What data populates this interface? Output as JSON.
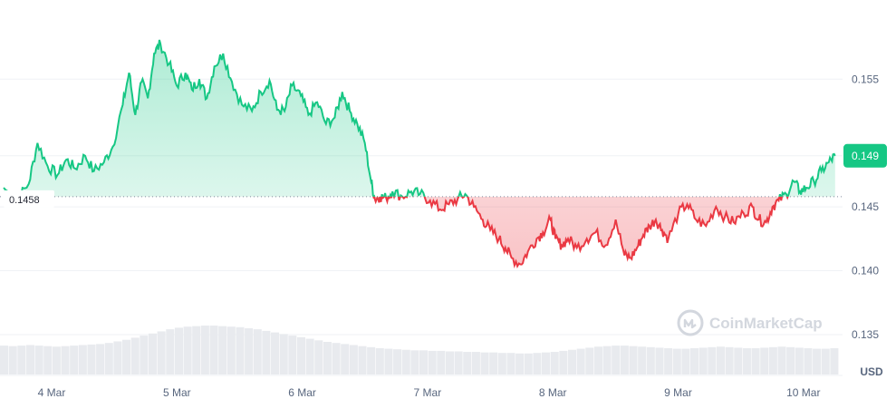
{
  "chart_data": {
    "type": "area",
    "currency": "USD",
    "reference_value": 0.1458,
    "current_value": 0.149,
    "ylim": [
      0.1318,
      0.1612
    ],
    "yticks": [
      {
        "value": 0.155,
        "label": "0.155"
      },
      {
        "value": 0.145,
        "label": "0.145"
      },
      {
        "value": 0.14,
        "label": "0.140"
      },
      {
        "value": 0.135,
        "label": "0.135"
      }
    ],
    "xticks": [
      "4 Mar",
      "5 Mar",
      "6 Mar",
      "7 Mar",
      "8 Mar",
      "9 Mar",
      "10 Mar"
    ],
    "xlim": [
      0,
      6.66
    ],
    "series": [
      {
        "x": [
          0.0,
          0.1,
          0.2,
          0.27,
          0.35,
          0.43,
          0.5,
          0.57,
          0.65,
          0.72,
          0.8,
          0.87,
          0.95,
          1.0,
          1.05,
          1.1,
          1.15,
          1.2,
          1.25,
          1.32,
          1.38,
          1.45,
          1.5,
          1.56,
          1.62,
          1.68,
          1.75,
          1.82,
          1.9,
          1.98,
          2.05,
          2.12,
          2.18,
          2.24,
          2.3,
          2.37,
          2.43,
          2.5,
          2.57,
          2.64,
          2.7,
          2.76,
          2.82,
          2.88,
          2.93,
          2.96,
          3.0,
          3.05,
          3.1,
          3.18,
          3.25,
          3.32,
          3.4,
          3.48,
          3.55,
          3.62,
          3.68,
          3.75,
          3.82,
          3.88,
          3.95,
          4.0,
          4.05,
          4.12,
          4.18,
          4.25,
          4.3,
          4.36,
          4.4,
          4.45,
          4.5,
          4.57,
          4.65,
          4.72,
          4.8,
          4.88,
          4.95,
          5.0,
          5.05,
          5.1,
          5.15,
          5.2,
          5.25,
          5.3,
          5.38,
          5.45,
          5.52,
          5.6,
          5.68,
          5.75,
          5.82,
          5.9,
          5.97,
          6.02,
          6.08,
          6.13,
          6.18,
          6.24,
          6.3,
          6.35,
          6.4,
          6.46,
          6.52,
          6.58,
          6.63
        ],
        "y": [
          0.1465,
          0.1455,
          0.1468,
          0.15,
          0.1482,
          0.1475,
          0.1487,
          0.148,
          0.149,
          0.1478,
          0.1485,
          0.1497,
          0.153,
          0.1555,
          0.1522,
          0.1548,
          0.1535,
          0.157,
          0.1578,
          0.1562,
          0.1545,
          0.1555,
          0.1542,
          0.155,
          0.1535,
          0.156,
          0.157,
          0.1548,
          0.153,
          0.1525,
          0.154,
          0.1549,
          0.1526,
          0.1525,
          0.1545,
          0.1537,
          0.1522,
          0.1532,
          0.1515,
          0.152,
          0.154,
          0.1525,
          0.1515,
          0.15,
          0.147,
          0.1456,
          0.1458,
          0.1457,
          0.1462,
          0.1458,
          0.1462,
          0.146,
          0.1455,
          0.1448,
          0.1452,
          0.1456,
          0.146,
          0.145,
          0.144,
          0.1432,
          0.1425,
          0.1418,
          0.141,
          0.1405,
          0.1415,
          0.1425,
          0.143,
          0.144,
          0.1425,
          0.142,
          0.1425,
          0.1418,
          0.1425,
          0.143,
          0.142,
          0.144,
          0.1412,
          0.141,
          0.1418,
          0.1428,
          0.1435,
          0.144,
          0.1432,
          0.1425,
          0.1445,
          0.1452,
          0.144,
          0.1435,
          0.145,
          0.1442,
          0.1438,
          0.1445,
          0.145,
          0.144,
          0.1438,
          0.145,
          0.1455,
          0.146,
          0.147,
          0.1462,
          0.1465,
          0.147,
          0.1478,
          0.1485,
          0.149
        ]
      }
    ],
    "volume": [
      0.55,
      0.54,
      0.55,
      0.56,
      0.55,
      0.54,
      0.53,
      0.54,
      0.55,
      0.56,
      0.57,
      0.58,
      0.6,
      0.63,
      0.66,
      0.7,
      0.74,
      0.78,
      0.82,
      0.86,
      0.89,
      0.91,
      0.92,
      0.93,
      0.93,
      0.92,
      0.91,
      0.9,
      0.88,
      0.86,
      0.83,
      0.8,
      0.77,
      0.74,
      0.71,
      0.68,
      0.65,
      0.62,
      0.6,
      0.58,
      0.56,
      0.54,
      0.52,
      0.5,
      0.49,
      0.48,
      0.47,
      0.46,
      0.46,
      0.45,
      0.45,
      0.44,
      0.44,
      0.43,
      0.43,
      0.42,
      0.42,
      0.41,
      0.41,
      0.4,
      0.4,
      0.41,
      0.42,
      0.43,
      0.45,
      0.47,
      0.49,
      0.51,
      0.53,
      0.54,
      0.55,
      0.55,
      0.54,
      0.53,
      0.52,
      0.51,
      0.5,
      0.49,
      0.49,
      0.5,
      0.51,
      0.52,
      0.53,
      0.52,
      0.51,
      0.5,
      0.5,
      0.51,
      0.52,
      0.53,
      0.52,
      0.51,
      0.5,
      0.49,
      0.49,
      0.5
    ]
  },
  "reference_label": "0.1458",
  "current_label": "0.149",
  "unit_label": "USD",
  "watermark": "CoinMarketCap",
  "colors": {
    "up": "#16c784",
    "down": "#ea3943",
    "grid": "#eff2f5",
    "volume": "#e8eaee",
    "text": "#58667e"
  }
}
